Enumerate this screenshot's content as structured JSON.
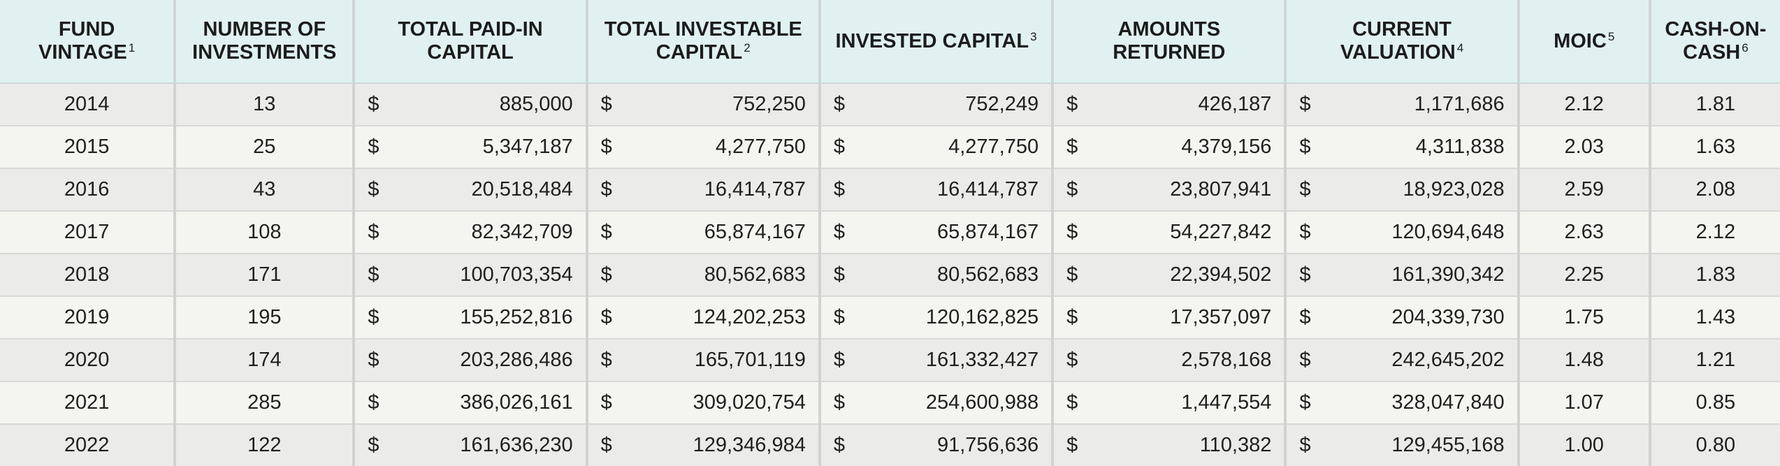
{
  "columns": [
    {
      "label_lines": [
        "FUND",
        "VINTAGE"
      ],
      "footnote": "1"
    },
    {
      "label_lines": [
        "NUMBER OF",
        "INVESTMENTS"
      ],
      "footnote": ""
    },
    {
      "label_lines": [
        "TOTAL PAID-IN",
        "CAPITAL"
      ],
      "footnote": ""
    },
    {
      "label_lines": [
        "TOTAL INVESTABLE",
        "CAPITAL"
      ],
      "footnote": "2"
    },
    {
      "label_lines": [
        "INVESTED CAPITAL"
      ],
      "footnote": "3"
    },
    {
      "label_lines": [
        "AMOUNTS",
        "RETURNED"
      ],
      "footnote": ""
    },
    {
      "label_lines": [
        "CURRENT",
        "VALUATION"
      ],
      "footnote": "4"
    },
    {
      "label_lines": [
        "MOIC"
      ],
      "footnote": "5"
    },
    {
      "label_lines": [
        "CASH-ON-",
        "CASH"
      ],
      "footnote": "6"
    }
  ],
  "currency_symbol": "$",
  "rows": [
    {
      "vintage": "2014",
      "investments": "13",
      "paid_in": "885,000",
      "investable": "752,250",
      "invested": "752,249",
      "returned": "426,187",
      "valuation": "1,171,686",
      "moic": "2.12",
      "cash_on_cash": "1.81"
    },
    {
      "vintage": "2015",
      "investments": "25",
      "paid_in": "5,347,187",
      "investable": "4,277,750",
      "invested": "4,277,750",
      "returned": "4,379,156",
      "valuation": "4,311,838",
      "moic": "2.03",
      "cash_on_cash": "1.63"
    },
    {
      "vintage": "2016",
      "investments": "43",
      "paid_in": "20,518,484",
      "investable": "16,414,787",
      "invested": "16,414,787",
      "returned": "23,807,941",
      "valuation": "18,923,028",
      "moic": "2.59",
      "cash_on_cash": "2.08"
    },
    {
      "vintage": "2017",
      "investments": "108",
      "paid_in": "82,342,709",
      "investable": "65,874,167",
      "invested": "65,874,167",
      "returned": "54,227,842",
      "valuation": "120,694,648",
      "moic": "2.63",
      "cash_on_cash": "2.12"
    },
    {
      "vintage": "2018",
      "investments": "171",
      "paid_in": "100,703,354",
      "investable": "80,562,683",
      "invested": "80,562,683",
      "returned": "22,394,502",
      "valuation": "161,390,342",
      "moic": "2.25",
      "cash_on_cash": "1.83"
    },
    {
      "vintage": "2019",
      "investments": "195",
      "paid_in": "155,252,816",
      "investable": "124,202,253",
      "invested": "120,162,825",
      "returned": "17,357,097",
      "valuation": "204,339,730",
      "moic": "1.75",
      "cash_on_cash": "1.43"
    },
    {
      "vintage": "2020",
      "investments": "174",
      "paid_in": "203,286,486",
      "investable": "165,701,119",
      "invested": "161,332,427",
      "returned": "2,578,168",
      "valuation": "242,645,202",
      "moic": "1.48",
      "cash_on_cash": "1.21"
    },
    {
      "vintage": "2021",
      "investments": "285",
      "paid_in": "386,026,161",
      "investable": "309,020,754",
      "invested": "254,600,988",
      "returned": "1,447,554",
      "valuation": "328,047,840",
      "moic": "1.07",
      "cash_on_cash": "0.85"
    },
    {
      "vintage": "2022",
      "investments": "122",
      "paid_in": "161,636,230",
      "investable": "129,346,984",
      "invested": "91,756,636",
      "returned": "110,382",
      "valuation": "129,455,168",
      "moic": "1.00",
      "cash_on_cash": "0.80"
    }
  ],
  "colors": {
    "header_bg": "#e1f1f1",
    "row_odd_bg": "#ebebe9",
    "row_even_bg": "#f4f5f0",
    "divider": "#d2d2d2"
  }
}
